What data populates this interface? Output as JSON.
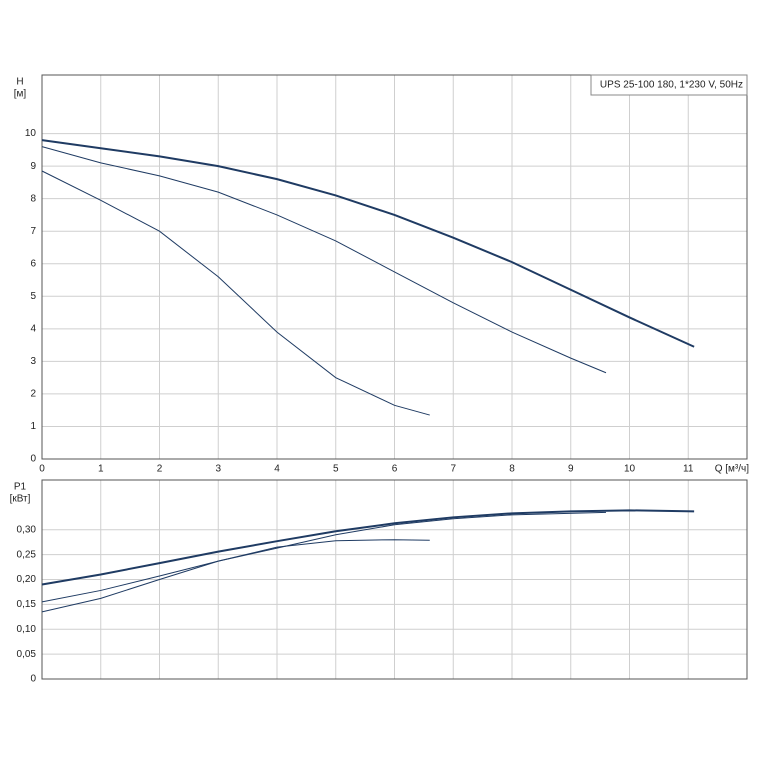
{
  "chart_data": [
    {
      "type": "line",
      "title": "UPS 25-100  180, 1*230 V, 50Hz",
      "ylabel": "H",
      "yunit": "[м]",
      "xlabel": "Q [м³/ч]",
      "xlim": [
        0,
        12
      ],
      "xticks": [
        0,
        1,
        2,
        3,
        4,
        5,
        6,
        7,
        8,
        9,
        10,
        11
      ],
      "ylim": [
        0,
        11.8
      ],
      "yticks": [
        0,
        1,
        2,
        3,
        4,
        5,
        6,
        7,
        8,
        9,
        10
      ],
      "grid": true,
      "x_tick_labels": true,
      "series": [
        {
          "color": "#1f3b63",
          "line_width": 2,
          "x": [
            0,
            1,
            2,
            3,
            4,
            5,
            6,
            7,
            8,
            9,
            10,
            11.1
          ],
          "values": [
            9.8,
            9.55,
            9.3,
            9.0,
            8.6,
            8.1,
            7.5,
            6.8,
            6.05,
            5.2,
            4.35,
            3.45
          ]
        },
        {
          "color": "#1f3b63",
          "line_width": 1,
          "x": [
            0,
            1,
            2,
            3,
            4,
            5,
            6,
            7,
            8,
            9,
            9.6
          ],
          "values": [
            9.6,
            9.1,
            8.7,
            8.2,
            7.5,
            6.7,
            5.75,
            4.8,
            3.9,
            3.1,
            2.65
          ]
        },
        {
          "color": "#1f3b63",
          "line_width": 1,
          "x": [
            0,
            1,
            2,
            3,
            4,
            5,
            6,
            6.6
          ],
          "values": [
            8.85,
            7.95,
            7.0,
            5.6,
            3.9,
            2.5,
            1.65,
            1.35
          ]
        }
      ]
    },
    {
      "type": "line",
      "ylabel": "P1",
      "yunit": "[кВт]",
      "xlim": [
        0,
        12
      ],
      "xticks": [
        0,
        1,
        2,
        3,
        4,
        5,
        6,
        7,
        8,
        9,
        10,
        11
      ],
      "ylim": [
        0,
        0.4
      ],
      "yticks": [
        0,
        {
          "value": 0.05,
          "label": "0,05"
        },
        {
          "value": 0.1,
          "label": "0,10"
        },
        {
          "value": 0.15,
          "label": "0,15"
        },
        {
          "value": 0.2,
          "label": "0,20"
        },
        {
          "value": 0.25,
          "label": "0,25"
        },
        {
          "value": 0.3,
          "label": "0,30"
        }
      ],
      "grid": true,
      "x_tick_labels": false,
      "series": [
        {
          "color": "#1f3b63",
          "line_width": 2,
          "x": [
            0,
            1,
            2,
            3,
            4,
            5,
            6,
            7,
            8,
            9,
            10,
            11.1
          ],
          "values": [
            0.19,
            0.21,
            0.233,
            0.256,
            0.277,
            0.297,
            0.313,
            0.325,
            0.333,
            0.337,
            0.339,
            0.337
          ]
        },
        {
          "color": "#1f3b63",
          "line_width": 1,
          "x": [
            0,
            1,
            2,
            3,
            4,
            5,
            6,
            7,
            8,
            9.6
          ],
          "values": [
            0.155,
            0.178,
            0.207,
            0.237,
            0.263,
            0.29,
            0.31,
            0.322,
            0.33,
            0.335
          ]
        },
        {
          "color": "#1f3b63",
          "line_width": 1,
          "x": [
            0,
            1,
            2,
            3,
            4,
            5,
            6,
            6.6
          ],
          "values": [
            0.135,
            0.162,
            0.2,
            0.237,
            0.265,
            0.278,
            0.28,
            0.279
          ]
        }
      ]
    }
  ]
}
